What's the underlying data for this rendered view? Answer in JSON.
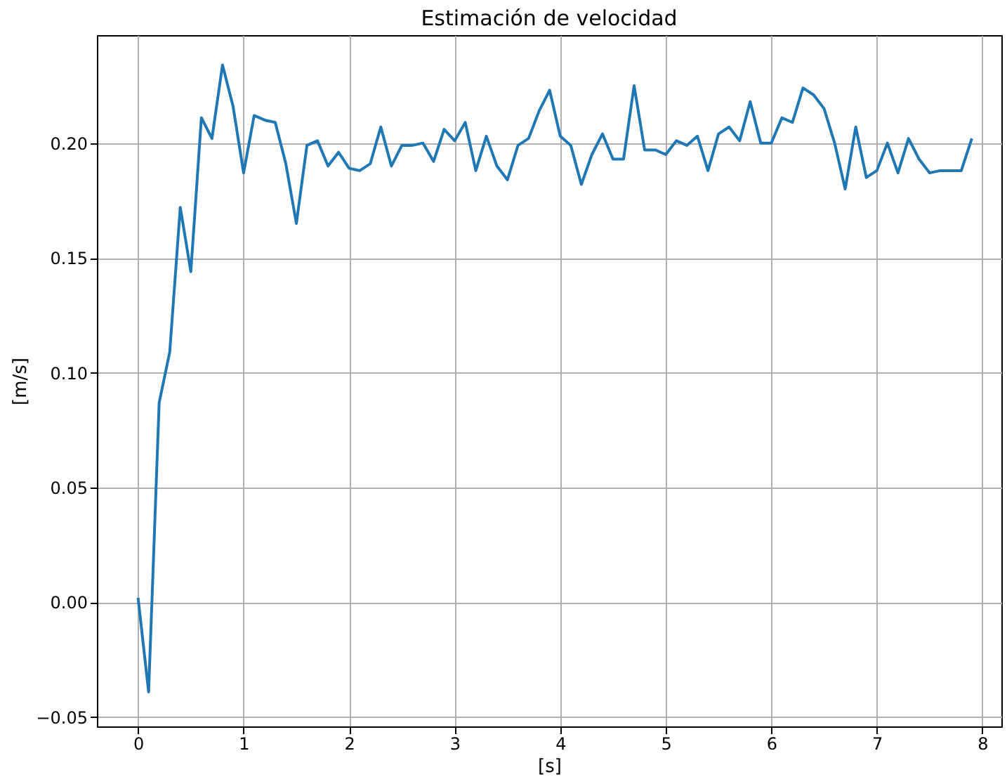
{
  "chart_data": {
    "type": "line",
    "title": "Estimación de velocidad",
    "xlabel": "[s]",
    "ylabel": "[m/s]",
    "x": [
      0,
      0.1,
      0.2,
      0.3,
      0.4,
      0.5,
      0.6,
      0.7,
      0.8,
      0.9,
      1.0,
      1.1,
      1.2,
      1.3,
      1.4,
      1.5,
      1.6,
      1.7,
      1.8,
      1.9,
      2.0,
      2.1,
      2.2,
      2.3,
      2.4,
      2.5,
      2.6,
      2.7,
      2.8,
      2.9,
      3.0,
      3.1,
      3.2,
      3.3,
      3.4,
      3.5,
      3.6,
      3.7,
      3.8,
      3.9,
      4.0,
      4.1,
      4.2,
      4.3,
      4.4,
      4.5,
      4.6,
      4.7,
      4.8,
      4.9,
      5.0,
      5.1,
      5.2,
      5.3,
      5.4,
      5.5,
      5.6,
      5.7,
      5.8,
      5.9,
      6.0,
      6.1,
      6.2,
      6.3,
      6.4,
      6.5,
      6.6,
      6.7,
      6.8,
      6.9,
      7.0,
      7.1,
      7.2,
      7.3,
      7.4,
      7.5,
      7.6,
      7.7,
      7.8,
      7.9
    ],
    "series": [
      {
        "color": "#1f77b4",
        "values": [
          0.002,
          -0.039,
          0.087,
          0.109,
          0.172,
          0.144,
          0.211,
          0.202,
          0.234,
          0.216,
          0.187,
          0.212,
          0.21,
          0.209,
          0.191,
          0.165,
          0.199,
          0.201,
          0.19,
          0.196,
          0.189,
          0.188,
          0.191,
          0.207,
          0.19,
          0.199,
          0.199,
          0.2,
          0.192,
          0.206,
          0.201,
          0.209,
          0.188,
          0.203,
          0.19,
          0.184,
          0.199,
          0.202,
          0.214,
          0.223,
          0.203,
          0.199,
          0.182,
          0.195,
          0.204,
          0.193,
          0.193,
          0.225,
          0.197,
          0.197,
          0.195,
          0.201,
          0.199,
          0.203,
          0.188,
          0.204,
          0.207,
          0.201,
          0.218,
          0.2,
          0.2,
          0.211,
          0.209,
          0.224,
          0.221,
          0.215,
          0.2,
          0.18,
          0.207,
          0.185,
          0.188,
          0.2,
          0.187,
          0.202,
          0.193,
          0.187,
          0.188,
          0.188,
          0.188,
          0.202
        ]
      }
    ],
    "xlim": [
      -0.39,
      8.18
    ],
    "ylim": [
      -0.054,
      0.247
    ],
    "xticks": [
      0,
      1,
      2,
      3,
      4,
      5,
      6,
      7,
      8
    ],
    "yticks": [
      {
        "value": -0.05,
        "label": "−0.05"
      },
      {
        "value": 0,
        "label": "0.00"
      },
      {
        "value": 0.05,
        "label": "0.05"
      },
      {
        "value": 0.1,
        "label": "0.10"
      },
      {
        "value": 0.15,
        "label": "0.15"
      },
      {
        "value": 0.2,
        "label": "0.20"
      }
    ],
    "grid": true,
    "line_style": "solid",
    "marker": "none"
  }
}
